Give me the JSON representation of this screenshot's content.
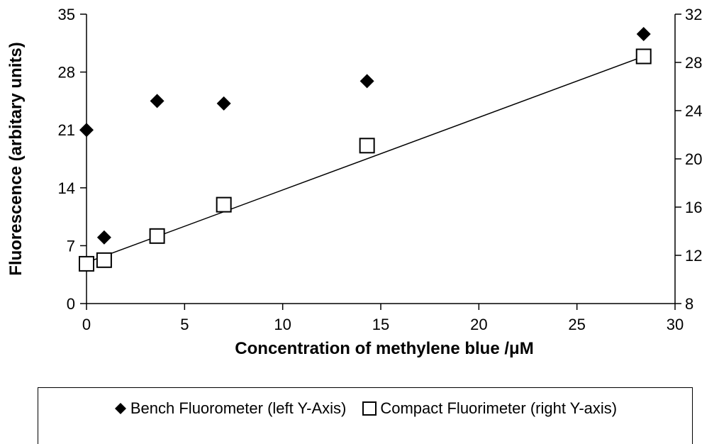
{
  "chart_data": {
    "type": "scatter",
    "xlabel": "Concentration of methylene blue /μM",
    "ylabel": "Fluorescence (arbitary units)",
    "xlim": [
      0,
      30
    ],
    "ylim_left": [
      0,
      35
    ],
    "ylim_right": [
      8,
      32
    ],
    "x_ticks": [
      "0",
      "5",
      "10",
      "15",
      "20",
      "25",
      "30"
    ],
    "y_ticks_left": [
      "0",
      "7",
      "14",
      "21",
      "28",
      "35"
    ],
    "y_ticks_right": [
      "8",
      "12",
      "16",
      "20",
      "24",
      "28",
      "32"
    ],
    "grid": false,
    "legend_position": "bottom",
    "series": [
      {
        "name": "Bench Fluorometer (left Y-Axis)",
        "axis": "left",
        "marker": "filled-diamond",
        "color": "#000000",
        "x": [
          0,
          0.9,
          3.6,
          7.0,
          14.3,
          28.4
        ],
        "y": [
          21.0,
          8.0,
          24.5,
          24.2,
          26.9,
          32.6
        ]
      },
      {
        "name": "Compact Fluorimeter (right Y-axis)",
        "axis": "right",
        "marker": "open-square",
        "color": "#000000",
        "x": [
          0,
          0.9,
          3.6,
          7.0,
          14.3,
          28.4
        ],
        "y": [
          11.3,
          11.6,
          13.6,
          16.2,
          21.1,
          28.5
        ],
        "trendline": {
          "type": "linear",
          "x": [
            0,
            28.4
          ],
          "y": [
            11.4,
            28.5
          ]
        }
      }
    ]
  }
}
